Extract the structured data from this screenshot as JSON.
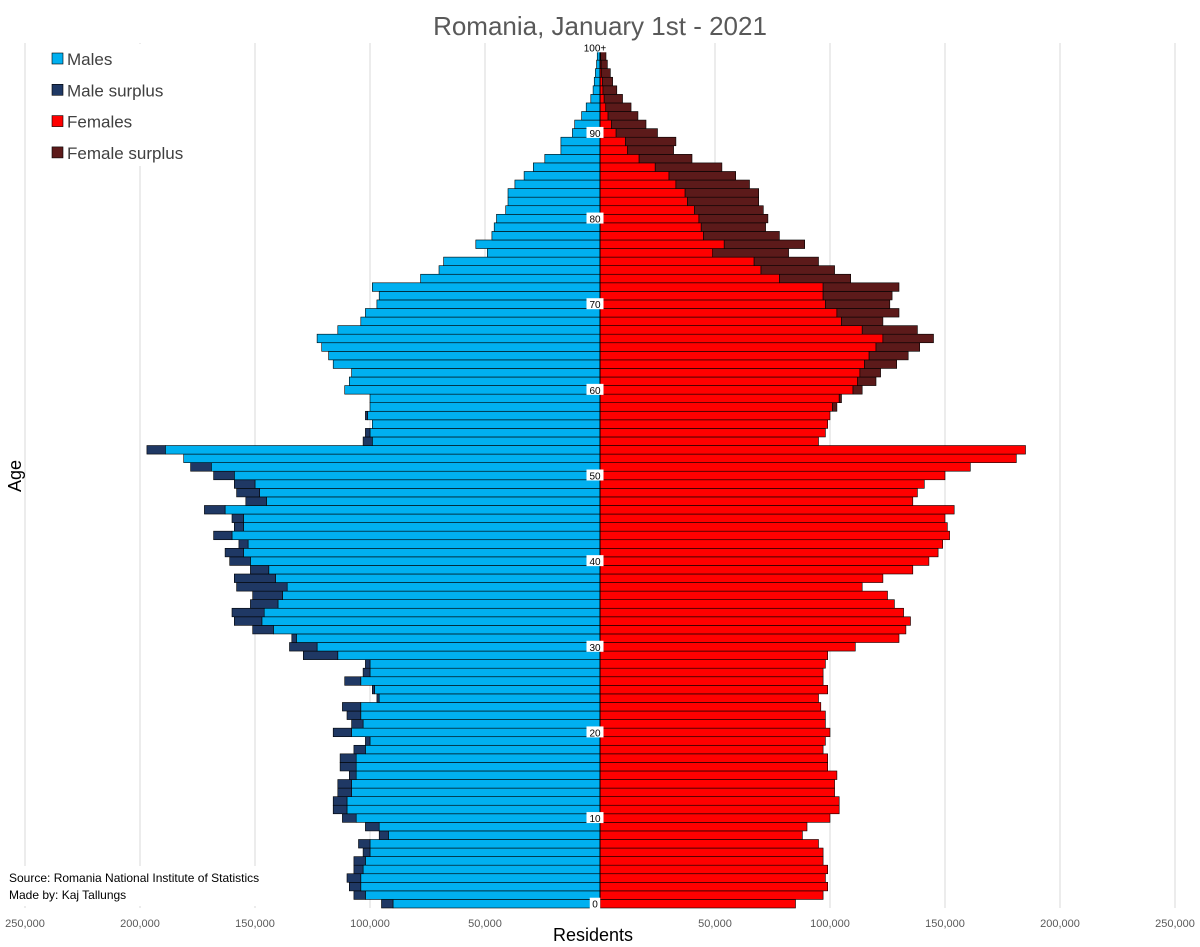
{
  "chart_data": {
    "type": "bar",
    "orientation": "horizontal-population-pyramid",
    "title": "Romania, January 1st - 2021",
    "xlabel": "Residents",
    "ylabel": "Age",
    "xlim": [
      -250000,
      250000
    ],
    "x_ticks": [
      -250000,
      -200000,
      -150000,
      -100000,
      -50000,
      0,
      50000,
      100000,
      150000,
      200000,
      250000
    ],
    "x_tick_labels": [
      "250,000",
      "200,000",
      "150,000",
      "100,000",
      "50,000",
      "",
      "50,000",
      "100,000",
      "150,000",
      "200,000",
      "250,000"
    ],
    "age_ticks": [
      0,
      10,
      20,
      30,
      40,
      50,
      60,
      70,
      80,
      90,
      100
    ],
    "age_tick_labels": [
      "0",
      "10",
      "20",
      "30",
      "40",
      "50",
      "60",
      "70",
      "80",
      "90",
      "100+"
    ],
    "legend": {
      "position": "top-left",
      "entries": [
        {
          "label": "Males",
          "color": "#00b0f0"
        },
        {
          "label": "Male surplus",
          "color": "#1f3864"
        },
        {
          "label": "Females",
          "color": "#ff0000"
        },
        {
          "label": "Female surplus",
          "color": "#5c1a1a"
        }
      ]
    },
    "ages": [
      0,
      1,
      2,
      3,
      4,
      5,
      6,
      7,
      8,
      9,
      10,
      11,
      12,
      13,
      14,
      15,
      16,
      17,
      18,
      19,
      20,
      21,
      22,
      23,
      24,
      25,
      26,
      27,
      28,
      29,
      30,
      31,
      32,
      33,
      34,
      35,
      36,
      37,
      38,
      39,
      40,
      41,
      42,
      43,
      44,
      45,
      46,
      47,
      48,
      49,
      50,
      51,
      52,
      53,
      54,
      55,
      56,
      57,
      58,
      59,
      60,
      61,
      62,
      63,
      64,
      65,
      66,
      67,
      68,
      69,
      70,
      71,
      72,
      73,
      74,
      75,
      76,
      77,
      78,
      79,
      80,
      81,
      82,
      83,
      84,
      85,
      86,
      87,
      88,
      89,
      90,
      91,
      92,
      93,
      94,
      95,
      96,
      97,
      98,
      99,
      100
    ],
    "series": [
      {
        "name": "Males",
        "values": [
          90000,
          102000,
          104000,
          104000,
          103000,
          102000,
          100000,
          100000,
          92000,
          96000,
          106000,
          110000,
          110000,
          108000,
          108000,
          106000,
          106000,
          106000,
          102000,
          100000,
          108000,
          103000,
          104000,
          104000,
          96000,
          98000,
          104000,
          100000,
          100000,
          114000,
          123000,
          132000,
          142000,
          147000,
          146000,
          140000,
          138000,
          136000,
          141000,
          144000,
          152000,
          155000,
          153000,
          160000,
          155000,
          155000,
          163000,
          145000,
          148000,
          150000,
          159000,
          169000,
          181000,
          189000,
          99000,
          100000,
          99000,
          101000,
          100000,
          100000,
          111000,
          109000,
          108000,
          116000,
          118000,
          121000,
          123000,
          114000,
          104000,
          102000,
          97000,
          96000,
          99000,
          78000,
          70000,
          68000,
          49000,
          54000,
          47000,
          46000,
          45000,
          41000,
          40000,
          40000,
          37000,
          33000,
          29000,
          24000,
          17000,
          17000,
          12000,
          11000,
          8000,
          6000,
          4000,
          3000,
          2500,
          2000,
          1500,
          1200,
          1000
        ]
      },
      {
        "name": "Females",
        "values": [
          85000,
          97000,
          99000,
          98000,
          99000,
          97000,
          97000,
          95000,
          88000,
          90000,
          100000,
          104000,
          104000,
          102000,
          102000,
          103000,
          99000,
          99000,
          97000,
          98000,
          100000,
          98000,
          98000,
          96000,
          95000,
          99000,
          97000,
          97000,
          98000,
          99000,
          111000,
          130000,
          133000,
          135000,
          132000,
          128000,
          125000,
          114000,
          123000,
          136000,
          143000,
          147000,
          149000,
          152000,
          151000,
          150000,
          154000,
          136000,
          138000,
          141000,
          150000,
          161000,
          181000,
          185000,
          95000,
          98000,
          99000,
          100000,
          101000,
          104000,
          110000,
          112000,
          113000,
          115000,
          117000,
          120000,
          123000,
          114000,
          105000,
          103000,
          98000,
          97000,
          97000,
          78000,
          70000,
          67000,
          49000,
          54000,
          45000,
          44000,
          43000,
          41000,
          38000,
          37000,
          33000,
          30000,
          24000,
          17000,
          12000,
          11000,
          7000,
          5000,
          3500,
          2500,
          1800,
          1300,
          1000,
          700,
          500,
          300,
          800
        ]
      },
      {
        "name": "Male surplus",
        "values": [
          5000,
          5000,
          5000,
          6000,
          4000,
          5000,
          3000,
          5000,
          4000,
          6000,
          6000,
          6000,
          6000,
          6000,
          6000,
          3000,
          7000,
          7000,
          5000,
          2000,
          8000,
          5000,
          6000,
          8000,
          1000,
          1000,
          7000,
          3000,
          2000,
          15000,
          12000,
          2000,
          9000,
          12000,
          14000,
          12000,
          13000,
          22000,
          18000,
          8000,
          9000,
          8000,
          4000,
          8000,
          4000,
          5000,
          9000,
          9000,
          10000,
          9000,
          9000,
          9000,
          0,
          8000,
          4000,
          2000,
          0,
          1000,
          0,
          0,
          0,
          0,
          0,
          0,
          0,
          0,
          0,
          0,
          0,
          0,
          0,
          0,
          0,
          0,
          0,
          0,
          0,
          0,
          0,
          0,
          0,
          0,
          0,
          0,
          0,
          0,
          0,
          0,
          0,
          0,
          0,
          0,
          0,
          0,
          0,
          0,
          0,
          0,
          0,
          0,
          0
        ]
      },
      {
        "name": "Female surplus",
        "values": [
          0,
          0,
          0,
          0,
          0,
          0,
          0,
          0,
          0,
          0,
          0,
          0,
          0,
          0,
          0,
          0,
          0,
          0,
          0,
          0,
          0,
          0,
          0,
          0,
          0,
          0,
          0,
          0,
          0,
          0,
          0,
          0,
          0,
          0,
          0,
          0,
          0,
          0,
          0,
          0,
          0,
          0,
          0,
          0,
          0,
          0,
          0,
          0,
          0,
          0,
          0,
          0,
          0,
          0,
          0,
          0,
          0,
          0,
          2000,
          1000,
          4000,
          8000,
          9000,
          14000,
          17000,
          19000,
          22000,
          24000,
          18000,
          27000,
          28000,
          30000,
          33000,
          31000,
          32000,
          28000,
          33000,
          35000,
          33000,
          28000,
          30000,
          30000,
          31000,
          32000,
          32000,
          29000,
          29000,
          23000,
          20000,
          22000,
          18000,
          15000,
          13000,
          11000,
          8000,
          6000,
          4500,
          3800,
          2700,
          2300,
          2500
        ]
      }
    ],
    "annotations": [
      "Source: Romania National Institute of Statistics",
      "Made by: Kaj Tallungs"
    ]
  }
}
